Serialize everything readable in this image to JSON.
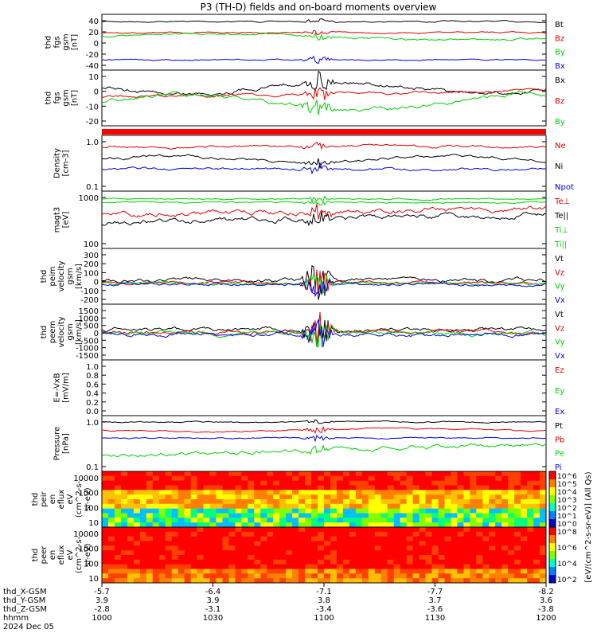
{
  "title": "P3 (TH-D) fields and on-board moments overview",
  "colors": {
    "black": "#000000",
    "red": "#e00000",
    "green": "#00d000",
    "blue": "#0000e0"
  },
  "chart_data": [
    {
      "id": "fgs-gsm",
      "type": "line",
      "ylabel": [
        "thd",
        "fgs",
        "gsm",
        "[nT]"
      ],
      "yticks": [
        "40",
        "20",
        "0",
        "-20",
        "-40"
      ],
      "series": [
        {
          "name": "Bt",
          "color": "black"
        },
        {
          "name": "Bz",
          "color": "red"
        },
        {
          "name": "By",
          "color": "green"
        },
        {
          "name": "Bx",
          "color": "blue"
        }
      ]
    },
    {
      "id": "fgs-dsl",
      "type": "line",
      "ylabel": [
        "thd",
        "fgs",
        "gsm",
        "[nT]"
      ],
      "yticks": [
        "10",
        "0",
        "-10",
        "-20"
      ],
      "series": [
        {
          "name": "Bx",
          "color": "black"
        },
        {
          "name": "Bz",
          "color": "red"
        },
        {
          "name": "By",
          "color": "green"
        }
      ]
    },
    {
      "id": "density",
      "type": "line",
      "scale": "log",
      "ylabel": [
        "Density",
        "[cm-3]"
      ],
      "yticks": [
        "1.0",
        "0.1"
      ],
      "series": [
        {
          "name": "Ne",
          "color": "red"
        },
        {
          "name": "Ni",
          "color": "black"
        },
        {
          "name": "Npot",
          "color": "blue"
        }
      ]
    },
    {
      "id": "temperature",
      "type": "line",
      "scale": "log",
      "ylabel": [
        "magt3",
        "[eV]"
      ],
      "yticks": [
        "1000",
        "100"
      ],
      "series": [
        {
          "name": "Te⊥",
          "color": "red"
        },
        {
          "name": "Te||",
          "color": "black"
        },
        {
          "name": "Ti⊥",
          "color": "green"
        },
        {
          "name": "Ti||",
          "color": "green"
        }
      ]
    },
    {
      "id": "peim-velocity",
      "type": "line",
      "ylabel": [
        "thd",
        "peim",
        "velocity",
        "gsm",
        "[km/s]"
      ],
      "yticks": [
        "300",
        "200",
        "100",
        "0",
        "-100",
        "-200"
      ],
      "series": [
        {
          "name": "Vt",
          "color": "black"
        },
        {
          "name": "Vz",
          "color": "red"
        },
        {
          "name": "Vy",
          "color": "green"
        },
        {
          "name": "Vx",
          "color": "blue"
        }
      ]
    },
    {
      "id": "peem-velocity",
      "type": "line",
      "ylabel": [
        "thd",
        "peem",
        "velocity",
        "gsm",
        "[km/s]"
      ],
      "yticks": [
        "1500",
        "1000",
        "500",
        "0",
        "-500",
        "-1000",
        "-1500"
      ],
      "series": [
        {
          "name": "Vt",
          "color": "black"
        },
        {
          "name": "Vz",
          "color": "red"
        },
        {
          "name": "Vy",
          "color": "green"
        },
        {
          "name": "Vx",
          "color": "blue"
        }
      ]
    },
    {
      "id": "efield",
      "type": "line",
      "ylabel": [
        "E=-VxB",
        "[mV/m]"
      ],
      "yticks": [
        "1.0",
        "0.8",
        "0.6",
        "0.4",
        "0.2",
        "0.0"
      ],
      "series": [
        {
          "name": "Ez",
          "color": "red"
        },
        {
          "name": "Ey",
          "color": "green"
        },
        {
          "name": "Ex",
          "color": "blue"
        }
      ]
    },
    {
      "id": "pressure",
      "type": "line",
      "scale": "log",
      "ylabel": [
        "Pressure",
        "[nPa]"
      ],
      "yticks": [
        "1.0",
        "0.1"
      ],
      "series": [
        {
          "name": "Pt",
          "color": "black"
        },
        {
          "name": "Pb",
          "color": "red"
        },
        {
          "name": "Pe",
          "color": "green"
        },
        {
          "name": "Pi",
          "color": "blue"
        }
      ]
    },
    {
      "id": "peir-spectrogram",
      "type": "heatmap",
      "ylabel": [
        "thd",
        "peir",
        "en",
        "eflux",
        "eV",
        "(cm^2-s-",
        "sr-eV)"
      ],
      "yticks": [
        "10000",
        "1000",
        "100",
        "10"
      ]
    },
    {
      "id": "peer-spectrogram",
      "type": "heatmap",
      "ylabel": [
        "thd",
        "peer",
        "en",
        "eflux",
        "eV",
        "(cm^2-s-",
        "sr-eV)"
      ],
      "yticks": [
        "10000",
        "1000",
        "100",
        "10"
      ]
    }
  ],
  "colorbar": {
    "label": "[eV/(cm^2-s-sr-eV)] (All Qs)",
    "ticks_top": [
      "10^6",
      "10^5",
      "10^4",
      "10^3",
      "10^2",
      "10^1",
      "10^0"
    ],
    "ticks_bottom": [
      "10^8",
      "10^6",
      "10^4",
      "10^2"
    ]
  },
  "x_axis": {
    "row_labels": [
      "thd_X-GSM",
      "thd_Y-GSM",
      "thd_Z-GSM",
      "hhmm",
      "2024 Dec 05"
    ],
    "columns": [
      [
        "-5.7",
        "3.9",
        "-2.8",
        "1000"
      ],
      [
        "-6.4",
        "3.9",
        "-3.1",
        "1030"
      ],
      [
        "-7.1",
        "3.8",
        "-3.4",
        "1100"
      ],
      [
        "-7.7",
        "3.7",
        "-3.6",
        "1130"
      ],
      [
        "-8.2",
        "3.6",
        "-3.8",
        "1200"
      ]
    ]
  }
}
